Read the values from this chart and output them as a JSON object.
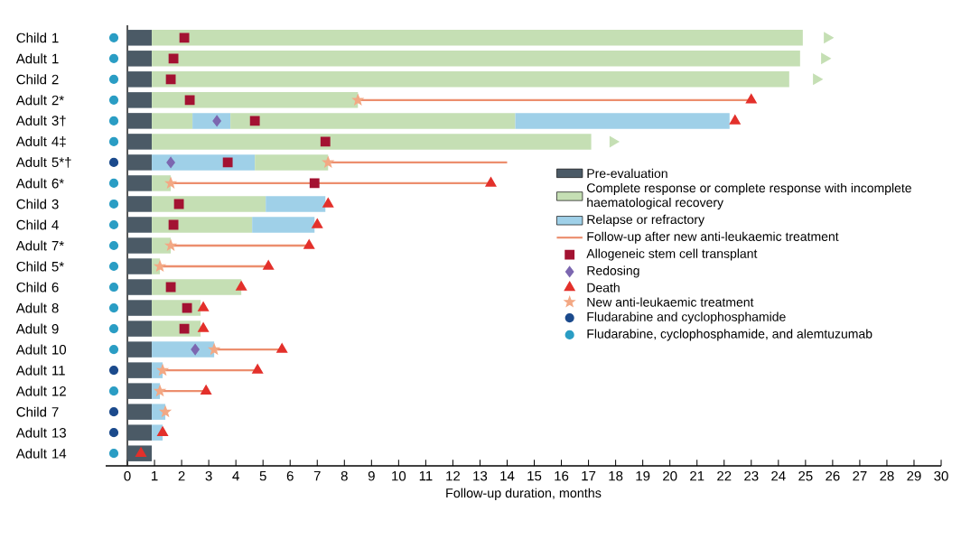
{
  "chart_data": {
    "type": "bar",
    "orientation": "horizontal",
    "stacked": true,
    "categories": [
      "Child 1",
      "Adult 1",
      "Child 2",
      "Adult 2*",
      "Adult 3†",
      "Adult 4‡",
      "Adult 5*†",
      "Adult 6*",
      "Child 3",
      "Child 4",
      "Adult 7*",
      "Child 5*",
      "Child 6",
      "Adult 8",
      "Adult 9",
      "Adult 10",
      "Adult 11",
      "Adult 12",
      "Child 7",
      "Adult 13",
      "Adult 14"
    ],
    "series": [
      {
        "name": "Pre-evaluation",
        "color": "#4b5a66",
        "values": [
          0.9,
          0.9,
          0.9,
          0.9,
          0.9,
          0.9,
          0.9,
          0.9,
          0.9,
          0.9,
          0.9,
          0.9,
          0.9,
          0.9,
          0.9,
          0.9,
          0.9,
          0.9,
          0.9,
          0.9,
          0.9
        ]
      },
      {
        "name": "Complete response or complete response with incomplete haematological recovery",
        "color": "#c5dfb4",
        "values": [
          24.0,
          23.9,
          23.5,
          7.6,
          1.5,
          16.2,
          null,
          0.7,
          4.2,
          3.7,
          0.7,
          0.3,
          3.3,
          1.8,
          1.8,
          null,
          null,
          null,
          null,
          null,
          null
        ]
      },
      {
        "name": "Relapse or refractory",
        "color": "#9fd0e8",
        "values": [
          null,
          null,
          null,
          null,
          1.4,
          null,
          3.8,
          null,
          2.2,
          2.3,
          null,
          null,
          null,
          null,
          null,
          2.3,
          0.4,
          0.3,
          0.5,
          0.4,
          null
        ]
      },
      {
        "color": "#c5dfb4",
        "values": [
          null,
          null,
          null,
          null,
          10.5,
          null,
          2.7,
          null,
          null,
          null,
          null,
          null,
          null,
          null,
          null,
          null,
          null,
          null,
          null,
          null,
          null
        ]
      },
      {
        "color": "#9fd0e8",
        "values": [
          null,
          null,
          null,
          null,
          7.9,
          null,
          null,
          null,
          null,
          null,
          null,
          null,
          null,
          null,
          null,
          null,
          null,
          null,
          null,
          null,
          null
        ]
      },
      {
        "name": "Follow-up after new anti-leukaemic treatment",
        "line_style": "solid",
        "color": "#ec8e6e",
        "values": [
          null,
          null,
          null,
          14.5,
          null,
          null,
          6.6,
          11.8,
          null,
          null,
          5.1,
          4.0,
          null,
          null,
          null,
          2.5,
          3.5,
          1.7,
          null,
          null,
          null
        ]
      },
      {
        "name": "Allogeneic stem cell transplant",
        "type": "scatter",
        "marker": "square",
        "color": "#a31232",
        "x": [
          "Child 1",
          "Adult 1",
          "Child 2",
          "Adult 2*",
          "Adult 3†",
          "Adult 4‡",
          "Adult 5*†",
          "Adult 6*",
          "Child 3",
          "Child 4",
          "Child 6",
          "Adult 8",
          "Adult 9"
        ],
        "values": [
          2.1,
          1.7,
          1.6,
          2.3,
          4.7,
          7.3,
          3.7,
          6.9,
          1.9,
          1.7,
          1.6,
          2.2,
          2.1
        ]
      },
      {
        "name": "Redosing",
        "type": "scatter",
        "marker": "diamond",
        "color": "#7c67b0",
        "x": [
          "Adult 3†",
          "Adult 5*†",
          "Adult 10"
        ],
        "values": [
          3.3,
          1.6,
          2.5
        ]
      },
      {
        "name": "Death",
        "type": "scatter",
        "marker": "triangle",
        "color": "#e3302b",
        "x": [
          "Adult 2*",
          "Adult 3†",
          "Adult 6*",
          "Child 3",
          "Child 4",
          "Adult 7*",
          "Child 5*",
          "Child 6",
          "Adult 8",
          "Adult 9",
          "Adult 10",
          "Adult 11",
          "Adult 12",
          "Adult 13",
          "Adult 14"
        ],
        "values": [
          23.0,
          22.4,
          13.4,
          7.4,
          7.0,
          6.7,
          5.2,
          4.2,
          2.8,
          2.8,
          5.7,
          4.8,
          2.9,
          1.3,
          0.5
        ]
      },
      {
        "name": "New anti-leukaemic treatment",
        "type": "scatter",
        "marker": "star",
        "color": "#f3a884",
        "x": [
          "Adult 2*",
          "Adult 5*†",
          "Adult 6*",
          "Adult 7*",
          "Child 5*",
          "Adult 10",
          "Adult 11",
          "Adult 12",
          "Child 7"
        ],
        "values": [
          8.5,
          7.4,
          1.6,
          1.6,
          1.2,
          3.2,
          1.3,
          1.2,
          1.4
        ]
      },
      {
        "name": "Fludarabine and cyclophosphamide",
        "type": "scatter",
        "marker": "circle",
        "color": "#1b4a8c",
        "x": [
          "Adult 5*†",
          "Adult 11",
          "Child 7",
          "Adult 13"
        ],
        "values": [
          -0.5,
          -0.5,
          -0.5,
          -0.5
        ]
      },
      {
        "name": "Fludarabine, cyclophosphamide, and alemtuzumab",
        "type": "scatter",
        "marker": "circle",
        "color": "#2a9dc4",
        "x": [
          "Child 1",
          "Adult 1",
          "Child 2",
          "Adult 2*",
          "Adult 3†",
          "Adult 4‡",
          "Adult 6*",
          "Child 3",
          "Child 4",
          "Adult 7*",
          "Child 5*",
          "Child 6",
          "Adult 8",
          "Adult 9",
          "Adult 10",
          "Adult 12",
          "Adult 14"
        ],
        "values": [
          -0.5,
          -0.5,
          -0.5,
          -0.5,
          -0.5,
          -0.5,
          -0.5,
          -0.5,
          -0.5,
          -0.5,
          -0.5,
          -0.5,
          -0.5,
          -0.5,
          -0.5,
          -0.5,
          -0.5
        ]
      },
      {
        "type": "scatter",
        "marker": "triangle",
        "color": "#c5dfb4",
        "x": [
          "Child 1",
          "Adult 1",
          "Child 2",
          "Adult 4‡"
        ],
        "values": [
          25.8,
          25.7,
          25.4,
          17.9
        ]
      }
    ],
    "xlim": [
      -0.8,
      30
    ],
    "xticks": [
      0,
      1,
      2,
      3,
      4,
      5,
      6,
      7,
      8,
      9,
      10,
      11,
      12,
      13,
      14,
      15,
      16,
      17,
      18,
      19,
      20,
      21,
      22,
      23,
      24,
      25,
      26,
      27,
      28,
      29,
      30
    ],
    "xlabel": "Follow-up duration, months",
    "ref_lines": [
      {
        "axis": "x",
        "value": 0,
        "color": "#222222"
      }
    ],
    "legend": "bottom right"
  }
}
